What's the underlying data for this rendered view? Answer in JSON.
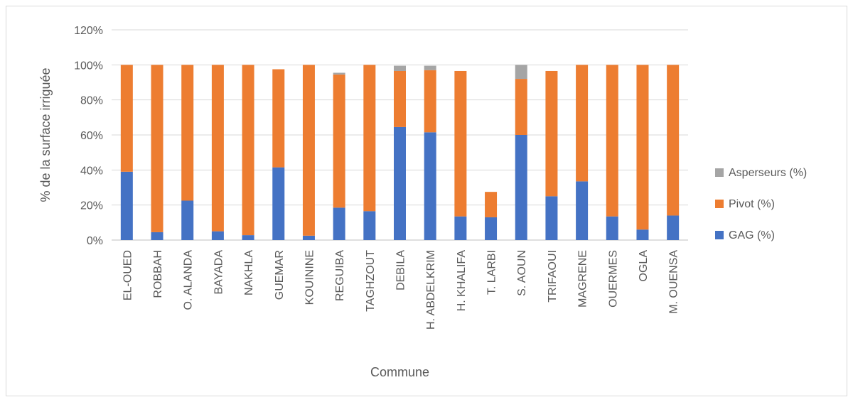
{
  "chart_data": {
    "type": "bar",
    "stacked": true,
    "title": "",
    "xlabel": "Commune",
    "ylabel": "% de la surface irriguée",
    "ylim": [
      0,
      1.2
    ],
    "yticks": [
      "0%",
      "20%",
      "40%",
      "60%",
      "80%",
      "100%",
      "120%"
    ],
    "grid": true,
    "legend_position": "right",
    "categories": [
      "EL-OUED",
      "ROBBAH",
      "O. ALANDA",
      "BAYADA",
      "NAKHLA",
      "GUEMAR",
      "KOUININE",
      "REGUIBA",
      "TAGHZOUT",
      "DEBILA",
      "H. ABDELKRIM",
      "H. KHALIFA",
      "T. LARBI",
      "S. AOUN",
      "TRIFAOUI",
      "MAGRENE",
      "OUERMES",
      "OGLA",
      "M. OUENSA"
    ],
    "series": [
      {
        "name": "GAG (%)",
        "color": "#4472c4",
        "values": [
          0.39,
          0.045,
          0.225,
          0.05,
          0.028,
          0.415,
          0.025,
          0.185,
          0.165,
          0.645,
          0.615,
          0.135,
          0.13,
          0.6,
          0.25,
          0.335,
          0.135,
          0.06,
          0.14
        ]
      },
      {
        "name": "Pivot (%)",
        "color": "#ed7d31",
        "values": [
          0.61,
          0.955,
          0.775,
          0.95,
          0.972,
          0.56,
          0.975,
          0.76,
          0.835,
          0.32,
          0.355,
          0.83,
          0.145,
          0.32,
          0.715,
          0.665,
          0.865,
          0.94,
          0.86
        ]
      },
      {
        "name": "Asperseurs (%)",
        "color": "#a5a5a5",
        "values": [
          0,
          0,
          0,
          0,
          0,
          0,
          0,
          0.01,
          0,
          0.03,
          0.025,
          0,
          0,
          0.08,
          0,
          0,
          0,
          0,
          0
        ]
      }
    ]
  }
}
